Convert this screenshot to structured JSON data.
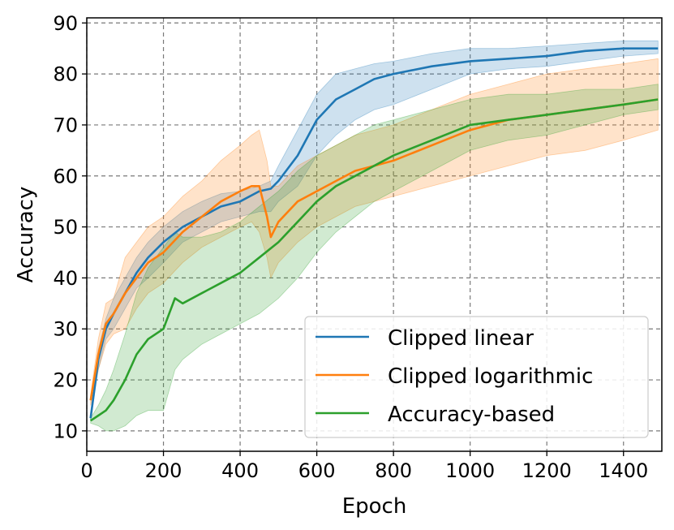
{
  "chart_data": {
    "type": "line",
    "title": "",
    "xlabel": "Epoch",
    "ylabel": "Accuracy",
    "xlim": [
      0,
      1500
    ],
    "ylim": [
      6,
      91
    ],
    "xticks": [
      0,
      200,
      400,
      600,
      800,
      1000,
      1200,
      1400
    ],
    "yticks": [
      10,
      20,
      30,
      40,
      50,
      60,
      70,
      80,
      90
    ],
    "grid": true,
    "legend_position": "bottom-right",
    "series": [
      {
        "name": "Clipped linear",
        "color": "#1f77b4",
        "x": [
          10,
          30,
          50,
          70,
          100,
          130,
          160,
          200,
          250,
          300,
          350,
          400,
          450,
          480,
          500,
          550,
          600,
          650,
          700,
          750,
          800,
          900,
          1000,
          1100,
          1200,
          1300,
          1400,
          1490
        ],
        "values": [
          12.5,
          24,
          30,
          33,
          37,
          41,
          44,
          47,
          50,
          52,
          54,
          55,
          57,
          57.5,
          59,
          64,
          71,
          75,
          77,
          79,
          80,
          81.5,
          82.5,
          83,
          83.5,
          84.5,
          85,
          85
        ],
        "lower": [
          12,
          22,
          28,
          30,
          34,
          38,
          40,
          43,
          47,
          49,
          51,
          52,
          53,
          53,
          55,
          58,
          64,
          68,
          71,
          73,
          74,
          77,
          80,
          81,
          81.5,
          82.5,
          83.5,
          84
        ],
        "upper": [
          13,
          26,
          32,
          36,
          40,
          44,
          47,
          50,
          53,
          55,
          56.5,
          57,
          58,
          59,
          62,
          69,
          76,
          80,
          81,
          82,
          82.5,
          84,
          85,
          85,
          85.5,
          86,
          86.5,
          86.5
        ]
      },
      {
        "name": "Clipped logarithmic",
        "color": "#ff7f0e",
        "x": [
          10,
          30,
          50,
          70,
          100,
          130,
          160,
          200,
          250,
          300,
          350,
          400,
          430,
          450,
          470,
          480,
          500,
          550,
          600,
          650,
          700,
          750,
          800,
          900,
          1000,
          1100,
          1200,
          1300,
          1400,
          1490
        ],
        "values": [
          16,
          25,
          31,
          33,
          37,
          40,
          43,
          45,
          49,
          52,
          55,
          57,
          58,
          58,
          52,
          48,
          51,
          55,
          57,
          59,
          61,
          62,
          63,
          66,
          69,
          71,
          72,
          73,
          74,
          75
        ],
        "lower": [
          15,
          22,
          27,
          29,
          30,
          34,
          37,
          39,
          43,
          46,
          48,
          50,
          51,
          49,
          44,
          40,
          43,
          47,
          50,
          52,
          54,
          55,
          56,
          58,
          60,
          62,
          64,
          65,
          67,
          69
        ],
        "upper": [
          17,
          28,
          35,
          36,
          44,
          47,
          50,
          52,
          56,
          59,
          63,
          66,
          68,
          69,
          63,
          58,
          58,
          62,
          64,
          66,
          68,
          69,
          70,
          73,
          76,
          78,
          80,
          81,
          82,
          83
        ]
      },
      {
        "name": "Accuracy-based",
        "color": "#2ca02c",
        "x": [
          10,
          30,
          50,
          70,
          100,
          130,
          160,
          200,
          230,
          250,
          300,
          350,
          400,
          450,
          500,
          550,
          600,
          650,
          700,
          750,
          800,
          900,
          1000,
          1100,
          1200,
          1300,
          1400,
          1490
        ],
        "values": [
          12,
          13,
          14,
          16,
          20,
          25,
          28,
          30,
          36,
          35,
          37,
          39,
          41,
          44,
          47,
          51,
          55,
          58,
          60,
          62,
          64,
          67,
          70,
          71,
          72,
          73,
          74,
          75
        ],
        "lower": [
          11.5,
          11,
          10,
          10,
          11,
          13,
          14,
          14,
          22,
          24,
          27,
          29,
          31,
          33,
          36,
          40,
          45,
          49,
          52,
          55,
          57,
          61,
          65,
          67,
          68,
          70,
          72,
          73
        ],
        "upper": [
          12.5,
          15,
          18,
          22,
          29,
          37,
          42,
          46,
          49,
          48,
          48,
          49,
          51,
          54,
          57,
          61,
          64,
          66,
          68,
          70,
          71,
          73,
          75,
          76,
          76,
          77,
          77,
          78
        ]
      }
    ]
  }
}
